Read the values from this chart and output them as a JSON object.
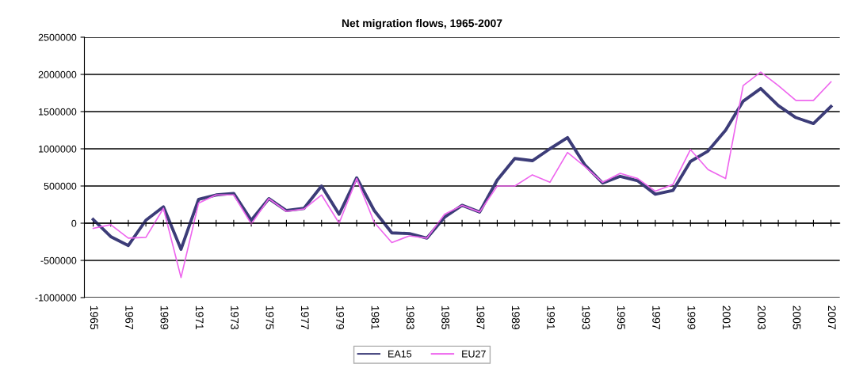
{
  "chart_data": {
    "type": "line",
    "title": "Net migration flows, 1965-2007",
    "categories": [
      "1965",
      null,
      "1967",
      null,
      "1969",
      null,
      "1971",
      null,
      "1973",
      null,
      "1975",
      null,
      "1977",
      null,
      "1979",
      null,
      "1981",
      null,
      "1983",
      null,
      "1985",
      null,
      "1987",
      null,
      "1989",
      null,
      "1991",
      null,
      "1993",
      null,
      "1995",
      null,
      "1997",
      null,
      "1999",
      null,
      "2001",
      null,
      "2003",
      null,
      "2005",
      null,
      "2007"
    ],
    "series": [
      {
        "name": "EA15",
        "color": "#3c3c78",
        "values": [
          50000,
          -180000,
          -300000,
          40000,
          220000,
          -350000,
          320000,
          380000,
          400000,
          40000,
          330000,
          170000,
          200000,
          500000,
          120000,
          610000,
          170000,
          -130000,
          -140000,
          -200000,
          80000,
          240000,
          150000,
          580000,
          870000,
          840000,
          1000000,
          1150000,
          780000,
          540000,
          630000,
          570000,
          390000,
          440000,
          830000,
          970000,
          1250000,
          1640000,
          1810000,
          1580000,
          1420000,
          1340000,
          1570000
        ]
      },
      {
        "name": "EU27",
        "color": "#ee66ee",
        "values": [
          -70000,
          -20000,
          -200000,
          -190000,
          200000,
          -730000,
          270000,
          380000,
          380000,
          -10000,
          330000,
          160000,
          190000,
          380000,
          0,
          600000,
          10000,
          -260000,
          -170000,
          -200000,
          120000,
          240000,
          150000,
          500000,
          500000,
          650000,
          550000,
          950000,
          760000,
          550000,
          670000,
          600000,
          430000,
          520000,
          990000,
          720000,
          600000,
          1850000,
          2030000,
          1850000,
          1650000,
          1650000,
          1900000
        ]
      }
    ],
    "ylim": [
      -1000000,
      2500000
    ],
    "yticks": [
      -1000000,
      -500000,
      0,
      500000,
      1000000,
      1500000,
      2000000,
      2500000
    ],
    "grid": "y",
    "legend": "bottom",
    "marker": "none",
    "line_style": "solid"
  }
}
